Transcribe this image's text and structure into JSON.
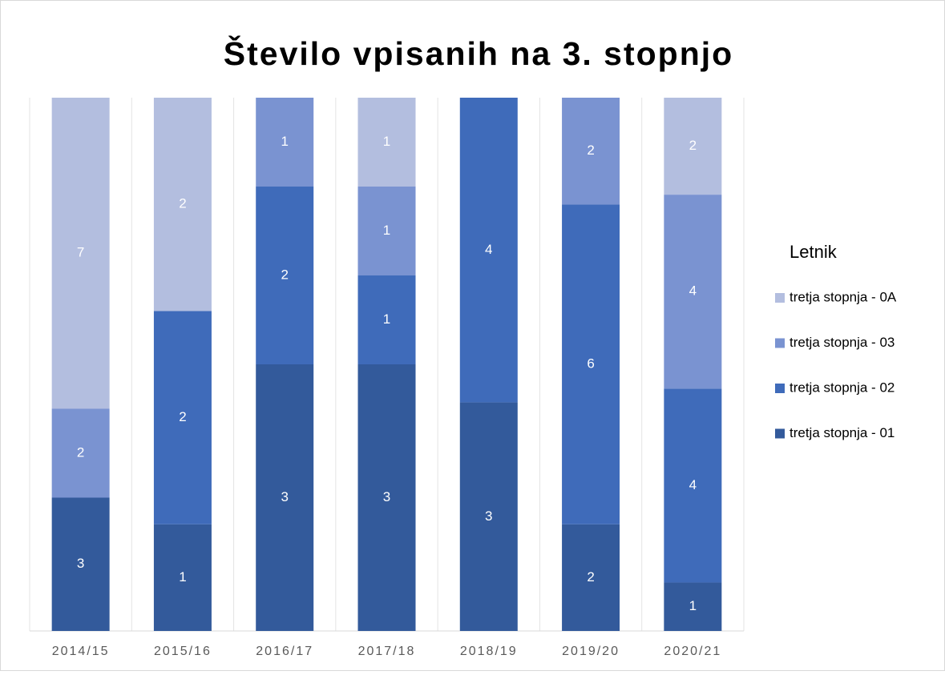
{
  "chart_data": {
    "type": "bar",
    "stacked": "percent",
    "title": "Število vpisanih na 3. stopnjo",
    "legend_title": "Letnik",
    "legend": "right",
    "grid": true,
    "categories": [
      "2014/15",
      "2015/16",
      "2016/17",
      "2017/18",
      "2018/19",
      "2019/20",
      "2020/21"
    ],
    "series": [
      {
        "name": "tretja stopnja - 01",
        "color": "#335a9b",
        "values": [
          3,
          1,
          3,
          3,
          3,
          2,
          1
        ]
      },
      {
        "name": "tretja stopnja - 02",
        "color": "#3f6bba",
        "values": [
          null,
          2,
          2,
          1,
          4,
          6,
          4
        ]
      },
      {
        "name": "tretja stopnja - 03",
        "color": "#7a93d1",
        "values": [
          2,
          null,
          1,
          1,
          null,
          2,
          4
        ]
      },
      {
        "name": "tretja stopnja - 0A",
        "color": "#b3bedf",
        "values": [
          7,
          2,
          null,
          1,
          null,
          null,
          2
        ]
      }
    ]
  }
}
